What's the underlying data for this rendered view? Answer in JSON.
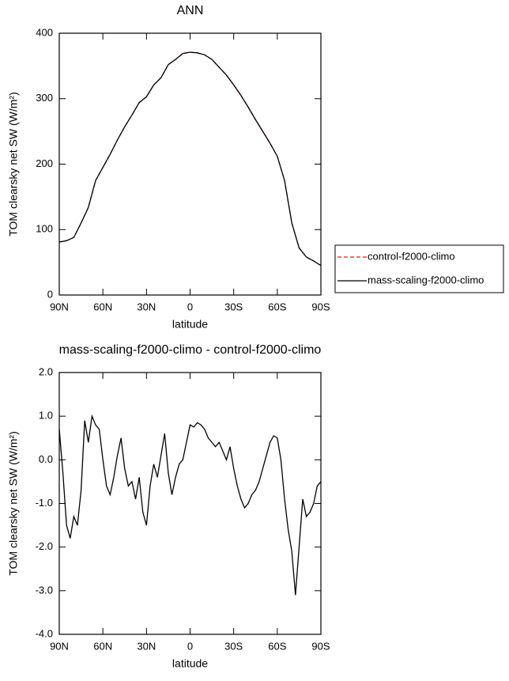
{
  "chart_data": [
    {
      "type": "line",
      "title": "ANN",
      "x_label": "latitude",
      "y_label": "TOM clearsky net SW (W/m²)",
      "x": [
        90,
        85,
        80,
        75,
        70,
        65,
        60,
        55,
        50,
        45,
        40,
        35,
        30,
        25,
        20,
        15,
        10,
        5,
        0,
        -5,
        -10,
        -15,
        -20,
        -25,
        -30,
        -35,
        -40,
        -45,
        -50,
        -55,
        -60,
        -65,
        -70,
        -75,
        -80,
        -85,
        -90
      ],
      "series": [
        {
          "name": "control-f2000-climo",
          "color": "#e41a1c",
          "dash": true,
          "values": [
            81,
            83,
            88,
            110,
            134,
            175,
            195,
            215,
            237,
            257,
            275,
            294,
            303,
            321,
            332,
            352,
            360,
            369,
            371,
            370,
            367,
            360,
            348,
            336,
            321,
            305,
            287,
            268,
            250,
            232,
            212,
            175,
            110,
            72,
            58,
            52,
            45
          ]
        },
        {
          "name": "mass-scaling-f2000-climo",
          "color": "#000000",
          "dash": false,
          "values": [
            81,
            83,
            88,
            110,
            134,
            175,
            195,
            215,
            237,
            257,
            275,
            294,
            303,
            321,
            332,
            352,
            360,
            369,
            371,
            370,
            367,
            360,
            348,
            336,
            321,
            305,
            287,
            268,
            250,
            232,
            212,
            175,
            110,
            72,
            58,
            52,
            45
          ]
        }
      ],
      "xlim": [
        90,
        -90
      ],
      "xticks": [
        {
          "value": 90,
          "label": "90N"
        },
        {
          "value": 60,
          "label": "60N"
        },
        {
          "value": 30,
          "label": "30N"
        },
        0,
        {
          "value": -30,
          "label": "30S"
        },
        {
          "value": -60,
          "label": "60S"
        },
        {
          "value": -90,
          "label": "90S"
        }
      ],
      "ylim": [
        0,
        400
      ],
      "yticks": [
        0,
        100,
        200,
        300,
        400
      ],
      "legend": "right"
    },
    {
      "type": "line",
      "title": "mass-scaling-f2000-climo - control-f2000-climo",
      "x_label": "latitude",
      "y_label": "TOM clearsky net SW (W/m²)",
      "x": [
        90,
        87.5,
        85,
        82.5,
        80,
        77.5,
        75,
        72.5,
        70,
        67.5,
        65,
        62.5,
        60,
        57.5,
        55,
        52.5,
        50,
        47.5,
        45,
        42.5,
        40,
        37.5,
        35,
        32.5,
        30,
        27.5,
        25,
        22.5,
        20,
        17.5,
        15,
        12.5,
        10,
        7.5,
        5,
        2.5,
        0,
        -2.5,
        -5,
        -7.5,
        -10,
        -12.5,
        -15,
        -17.5,
        -20,
        -22.5,
        -25,
        -27.5,
        -30,
        -32.5,
        -35,
        -37.5,
        -40,
        -42.5,
        -45,
        -47.5,
        -50,
        -52.5,
        -55,
        -57.5,
        -60,
        -62.5,
        -65,
        -67.5,
        -70,
        -72.5,
        -75,
        -77.5,
        -80,
        -82.5,
        -85,
        -87.5,
        -90
      ],
      "color": "#000000",
      "values": [
        0.7,
        -0.3,
        -1.5,
        -1.8,
        -1.3,
        -1.5,
        -0.7,
        0.9,
        0.4,
        1.0,
        0.8,
        0.7,
        0.0,
        -0.6,
        -0.8,
        -0.4,
        0.1,
        0.5,
        -0.2,
        -0.6,
        -0.5,
        -0.9,
        -0.4,
        -1.2,
        -1.5,
        -0.6,
        -0.1,
        -0.4,
        0.1,
        0.6,
        -0.3,
        -0.8,
        -0.4,
        -0.1,
        0.0,
        0.4,
        0.8,
        0.75,
        0.85,
        0.8,
        0.7,
        0.5,
        0.4,
        0.3,
        0.4,
        0.2,
        0.0,
        0.3,
        -0.2,
        -0.6,
        -0.9,
        -1.1,
        -1.0,
        -0.8,
        -0.7,
        -0.5,
        -0.2,
        0.1,
        0.4,
        0.55,
        0.5,
        0.0,
        -0.9,
        -1.6,
        -2.1,
        -3.1,
        -2.0,
        -0.9,
        -1.3,
        -1.2,
        -1.0,
        -0.6,
        -0.5
      ],
      "xlim": [
        90,
        -90
      ],
      "xticks": [
        {
          "value": 90,
          "label": "90N"
        },
        {
          "value": 60,
          "label": "60N"
        },
        {
          "value": 30,
          "label": "30N"
        },
        0,
        {
          "value": -30,
          "label": "30S"
        },
        {
          "value": -60,
          "label": "60S"
        },
        {
          "value": -90,
          "label": "90S"
        }
      ],
      "ylim": [
        -4,
        2
      ],
      "yticks": [
        {
          "value": 2,
          "label": "2.0"
        },
        {
          "value": 1,
          "label": "1.0"
        },
        {
          "value": 0,
          "label": "0.0"
        },
        {
          "value": -1,
          "label": "-1.0"
        },
        {
          "value": -2,
          "label": "-2.0"
        },
        {
          "value": -3,
          "label": "-3.0"
        },
        {
          "value": -4,
          "label": "-4.0"
        }
      ]
    }
  ]
}
